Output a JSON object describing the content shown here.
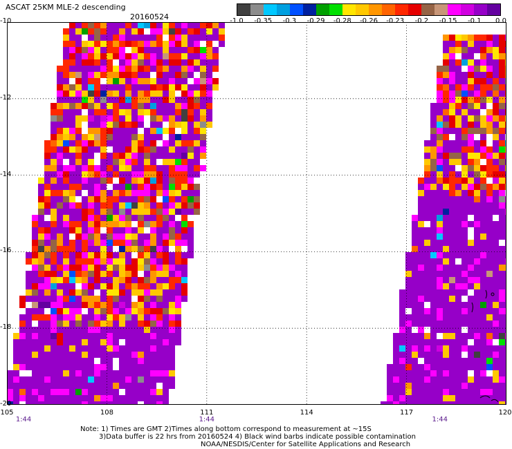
{
  "header": {
    "title": "ASCAT 25KM MLE-2 descending",
    "date": "20160524"
  },
  "colorbar": {
    "colors": [
      "#404040",
      "#8c8c8c",
      "#00c8ff",
      "#00a0e0",
      "#0050ff",
      "#0020a0",
      "#00a000",
      "#00e000",
      "#ffe600",
      "#ffc800",
      "#ff9600",
      "#ff6400",
      "#ff2800",
      "#e60000",
      "#966446",
      "#c89678",
      "#ff00ff",
      "#d000e0",
      "#9600c8",
      "#6400a0"
    ],
    "labels": [
      "-1.0",
      "-0.35",
      "-0.3",
      "-0.29",
      "-0.28",
      "-0.26",
      "-0.23",
      "-0.2",
      "-0.15",
      "-0.1",
      "0.0"
    ]
  },
  "map": {
    "lat_ticks": [
      "-10",
      "-12",
      "-14",
      "-16",
      "-18",
      "-20"
    ],
    "lon_ticks": [
      "105",
      "108",
      "111",
      "114",
      "117",
      "120"
    ],
    "lon_range": [
      105,
      120
    ],
    "lat_range": [
      -10,
      -20
    ],
    "time_labels": [
      {
        "text": "1:44",
        "lon": 105.5
      },
      {
        "text": "1:44",
        "lon": 111.0
      },
      {
        "text": "1:44",
        "lon": 118.0
      }
    ],
    "grid": true
  },
  "notes": {
    "line1": "Note: 1) Times are GMT 2)Times along bottom correspond to measurement at ~15S",
    "line2": "3)Data buffer is 22 hrs from 20160524 4) Black wind barbs indicate possible contamination",
    "line3": "NOAA/NESDIS/Center for Satellite Applications and Research"
  }
}
